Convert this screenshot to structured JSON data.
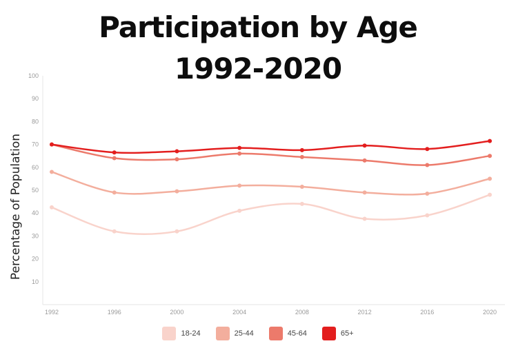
{
  "title_line1": "Participation by Age",
  "title_line2": "1992-2020",
  "chart_data": {
    "type": "line",
    "title": "Participation by Age 1992-2020",
    "xlabel": "",
    "ylabel": "Percentage of Population",
    "x": [
      "1992",
      "1996",
      "2000",
      "2004",
      "2008",
      "2012",
      "2016",
      "2020"
    ],
    "ylim": [
      0,
      100
    ],
    "yticks": [
      10,
      20,
      30,
      40,
      50,
      60,
      70,
      80,
      90,
      100
    ],
    "grid": false,
    "legend_position": "bottom",
    "series": [
      {
        "name": "18-24",
        "color": "#f9d3cb",
        "values": [
          42.5,
          32,
          32,
          41,
          44,
          37.5,
          39,
          48
        ]
      },
      {
        "name": "25-44",
        "color": "#f3ae9d",
        "values": [
          58,
          49,
          49.5,
          52,
          51.5,
          49,
          48.5,
          55
        ]
      },
      {
        "name": "45-64",
        "color": "#ec7a6b",
        "values": [
          70,
          64,
          63.5,
          66,
          64.5,
          63,
          61,
          65
        ]
      },
      {
        "name": "65+",
        "color": "#e31e1e",
        "values": [
          70,
          66.5,
          67,
          68.5,
          67.5,
          69.5,
          68,
          71.5
        ]
      }
    ]
  }
}
